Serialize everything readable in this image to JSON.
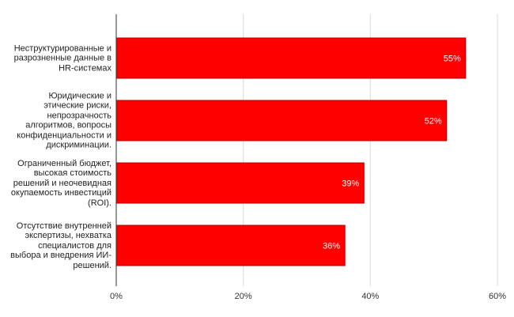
{
  "chart_data": {
    "type": "hbar",
    "categories": [
      "Неструктурированные и разрозненные данные в HR-системах",
      "Юридические и этические риски, непрозрачность алгоритмов, вопросы конфиденциальности и дискриминации.",
      "Ограниченный бюджет, высокая стоимость решений и неочевидная окупаемость инвестиций (ROI).",
      "Отсутствие внутренней экспертизы, нехватка специалистов для выбора и внедрения ИИ-решений."
    ],
    "values": [
      55,
      52,
      39,
      36
    ],
    "value_labels": [
      "55%",
      "52%",
      "39%",
      "36%"
    ],
    "color": "#ff0000",
    "xlim": [
      0,
      60
    ],
    "xticks": [
      {
        "value": 0,
        "label": "0%"
      },
      {
        "value": 20,
        "label": "20%"
      },
      {
        "value": 40,
        "label": "40%"
      },
      {
        "value": 60,
        "label": "60%"
      }
    ],
    "grid": true
  }
}
